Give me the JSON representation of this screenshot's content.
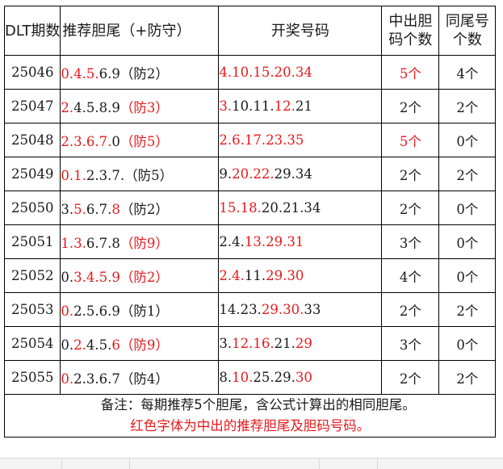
{
  "headers": {
    "issue": "DLT期数",
    "tails_line1": "推荐胆尾（+防守）",
    "numbers": "开奖号码",
    "hits_line1": "中出胆",
    "hits_line2": "码个数",
    "same_line1": "同尾号",
    "same_line2": "个数"
  },
  "rows": [
    {
      "issue": "25046",
      "tails": [
        {
          "t": "0.4.5.",
          "r": true
        },
        {
          "t": "6.9（防2）",
          "r": false
        }
      ],
      "numbers": [
        {
          "t": "4.10.15.20.34",
          "r": true
        }
      ],
      "hits": "5个",
      "hits_red": true,
      "same": "4个"
    },
    {
      "issue": "25047",
      "tails": [
        {
          "t": "2.",
          "r": true
        },
        {
          "t": "4.5.8.9",
          "r": false
        },
        {
          "t": "（防3）",
          "r": true
        }
      ],
      "numbers": [
        {
          "t": "3.",
          "r": true
        },
        {
          "t": "10.11.",
          "r": false
        },
        {
          "t": "12.",
          "r": true
        },
        {
          "t": "21",
          "r": false
        }
      ],
      "hits": "2个",
      "hits_red": false,
      "same": "2个"
    },
    {
      "issue": "25048",
      "tails": [
        {
          "t": "2.3.6.7.",
          "r": true
        },
        {
          "t": "0",
          "r": false
        },
        {
          "t": "（防5）",
          "r": true
        }
      ],
      "numbers": [
        {
          "t": "2.6.17.23.35",
          "r": true
        }
      ],
      "hits": "5个",
      "hits_red": true,
      "same": "0个"
    },
    {
      "issue": "25049",
      "tails": [
        {
          "t": "0.1.",
          "r": true
        },
        {
          "t": "2.",
          "r": false
        },
        {
          "t": "3.7.（防5）",
          "r": false
        }
      ],
      "numbers": [
        {
          "t": "9.",
          "r": false
        },
        {
          "t": "20.22.",
          "r": true
        },
        {
          "t": "29.34",
          "r": false
        }
      ],
      "hits": "2个",
      "hits_red": false,
      "same": "2个"
    },
    {
      "issue": "25050",
      "tails": [
        {
          "t": "3.",
          "r": false
        },
        {
          "t": "5.",
          "r": true
        },
        {
          "t": "6.7.",
          "r": false
        },
        {
          "t": "8",
          "r": true
        },
        {
          "t": "（防2）",
          "r": false
        }
      ],
      "numbers": [
        {
          "t": "15.18.",
          "r": true
        },
        {
          "t": "20.21.34",
          "r": false
        }
      ],
      "hits": "2个",
      "hits_red": false,
      "same": "0个"
    },
    {
      "issue": "25051",
      "tails": [
        {
          "t": "1.3.",
          "r": true
        },
        {
          "t": "6.7.8",
          "r": false
        },
        {
          "t": "（防9）",
          "r": true
        }
      ],
      "numbers": [
        {
          "t": "2.4.",
          "r": false
        },
        {
          "t": "13.29.31",
          "r": true
        }
      ],
      "hits": "3个",
      "hits_red": false,
      "same": "0个"
    },
    {
      "issue": "25052",
      "tails": [
        {
          "t": "0.",
          "r": false
        },
        {
          "t": "3.4.5.9",
          "r": true
        },
        {
          "t": "（防2）",
          "r": true
        }
      ],
      "numbers": [
        {
          "t": "2.4.",
          "r": true
        },
        {
          "t": "11.",
          "r": false
        },
        {
          "t": "29.30",
          "r": true
        }
      ],
      "hits": "4个",
      "hits_red": false,
      "same": "0个"
    },
    {
      "issue": "25053",
      "tails": [
        {
          "t": "0.",
          "r": true
        },
        {
          "t": "2.5.6.9（防1）",
          "r": false
        }
      ],
      "numbers": [
        {
          "t": "14.23.",
          "r": false
        },
        {
          "t": "29.30.",
          "r": true
        },
        {
          "t": "33",
          "r": false
        }
      ],
      "hits": "2个",
      "hits_red": false,
      "same": "2个"
    },
    {
      "issue": "25054",
      "tails": [
        {
          "t": "0.",
          "r": false
        },
        {
          "t": "2.",
          "r": true
        },
        {
          "t": "4.5.",
          "r": false
        },
        {
          "t": "6",
          "r": true
        },
        {
          "t": "（防9）",
          "r": true
        }
      ],
      "numbers": [
        {
          "t": "3.",
          "r": false
        },
        {
          "t": "12.16.",
          "r": true
        },
        {
          "t": "21.",
          "r": false
        },
        {
          "t": "29",
          "r": true
        }
      ],
      "hits": "3个",
      "hits_red": false,
      "same": "0个"
    },
    {
      "issue": "25055",
      "tails": [
        {
          "t": "0.",
          "r": true
        },
        {
          "t": "2.3.6.7（防4）",
          "r": false
        }
      ],
      "numbers": [
        {
          "t": "8.",
          "r": false
        },
        {
          "t": "10.",
          "r": true
        },
        {
          "t": "25.29.",
          "r": false
        },
        {
          "t": "30",
          "r": true
        }
      ],
      "hits": "2个",
      "hits_red": false,
      "same": "2个"
    }
  ],
  "note": {
    "line1": "备注：每期推荐5个胆尾，含公式计算出的相同胆尾。",
    "line2": "红色字体为中出的推荐胆尾及胆码号码。"
  },
  "colors": {
    "highlight": "#e8191c",
    "text": "#1a1a1a",
    "border": "#000000"
  }
}
